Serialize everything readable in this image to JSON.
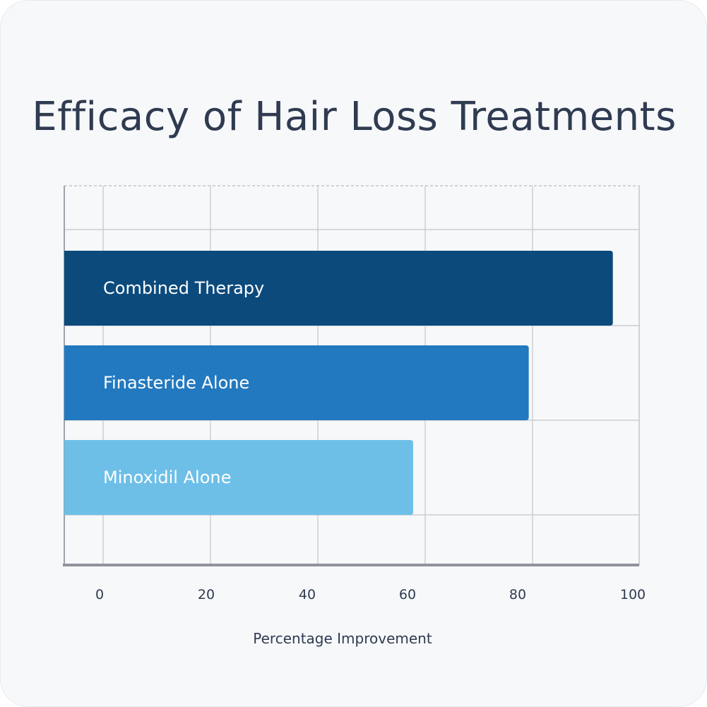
{
  "chart_data": {
    "type": "bar",
    "orientation": "horizontal",
    "title": "Efficacy of Hair Loss Treatments",
    "xlabel": "Percentage Improvement",
    "ylabel": "",
    "xlim": [
      0,
      100
    ],
    "xticks": [
      "0",
      "20",
      "40",
      "60",
      "80",
      "100"
    ],
    "categories": [
      "Combined Therapy",
      "Finasteride Alone",
      "Minoxidil Alone"
    ],
    "values": [
      97,
      81,
      59
    ],
    "colors": [
      "#0c4a7c",
      "#2379bf",
      "#6dbfe8"
    ],
    "grid": true,
    "legend": false
  }
}
